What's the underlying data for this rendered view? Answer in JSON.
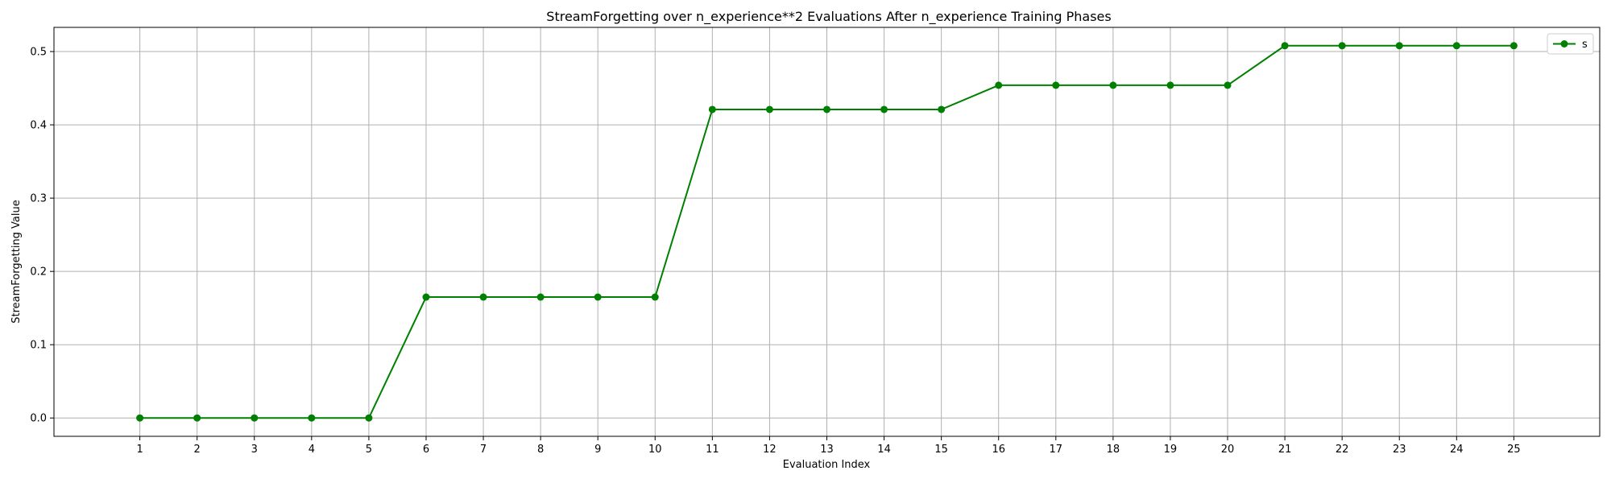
{
  "chart_data": {
    "type": "line",
    "title": "StreamForgetting over n_experience**2 Evaluations After n_experience Training Phases",
    "xlabel": "Evaluation Index",
    "ylabel": "StreamForgetting Value",
    "x": [
      1,
      2,
      3,
      4,
      5,
      6,
      7,
      8,
      9,
      10,
      11,
      12,
      13,
      14,
      15,
      16,
      17,
      18,
      19,
      20,
      21,
      22,
      23,
      24,
      25
    ],
    "series": [
      {
        "name": "s",
        "color": "#008000",
        "marker": "circle",
        "values": [
          0.0,
          0.0,
          0.0,
          0.0,
          0.0,
          0.165,
          0.165,
          0.165,
          0.165,
          0.165,
          0.421,
          0.421,
          0.421,
          0.421,
          0.421,
          0.454,
          0.454,
          0.454,
          0.454,
          0.454,
          0.508,
          0.508,
          0.508,
          0.508,
          0.508
        ]
      }
    ],
    "xlim": [
      -0.5,
      26.5
    ],
    "ylim": [
      -0.025,
      0.533
    ],
    "yticks": [
      "0.0",
      "0.1",
      "0.2",
      "0.3",
      "0.4",
      "0.5"
    ],
    "xticks": [
      "1",
      "2",
      "3",
      "4",
      "5",
      "6",
      "7",
      "8",
      "9",
      "10",
      "11",
      "12",
      "13",
      "14",
      "15",
      "16",
      "17",
      "18",
      "19",
      "20",
      "21",
      "22",
      "23",
      "24",
      "25"
    ],
    "grid": true,
    "legend_position": "top-right"
  }
}
